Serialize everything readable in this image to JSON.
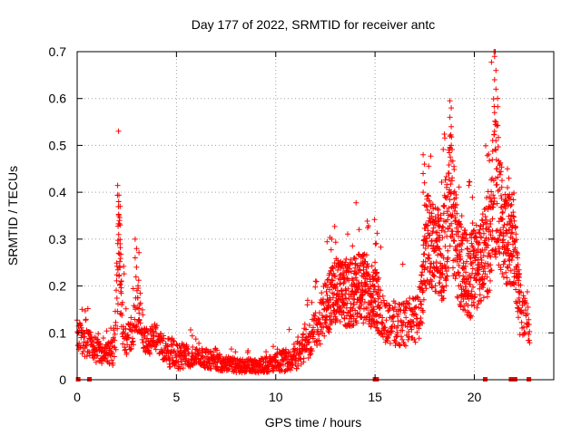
{
  "chart_data": {
    "type": "scatter",
    "title": "Day 177 of 2022, SRMTID for receiver antc",
    "xlabel": "GPS time / hours",
    "ylabel": "SRMTID / TECUs",
    "xlim": [
      0,
      24
    ],
    "ylim": [
      0,
      0.7
    ],
    "x_ticks": [
      {
        "value": 0,
        "label": "0"
      },
      {
        "value": 5,
        "label": "5"
      },
      {
        "value": 10,
        "label": "10"
      },
      {
        "value": 15,
        "label": "15"
      },
      {
        "value": 20,
        "label": "20"
      }
    ],
    "y_ticks": [
      {
        "value": 0,
        "label": "0"
      },
      {
        "value": 0.1,
        "label": "0.1"
      },
      {
        "value": 0.2,
        "label": "0.2"
      },
      {
        "value": 0.3,
        "label": "0.3"
      },
      {
        "value": 0.4,
        "label": "0.4"
      },
      {
        "value": 0.5,
        "label": "0.5"
      },
      {
        "value": 0.6,
        "label": "0.6"
      },
      {
        "value": 0.7,
        "label": "0.7"
      }
    ],
    "grid": true,
    "marker": "+",
    "series_color": "#ff0000",
    "envelope": [
      [
        0.0,
        0.1,
        0.03
      ],
      [
        0.3,
        0.08,
        0.03
      ],
      [
        0.8,
        0.07,
        0.03
      ],
      [
        1.3,
        0.05,
        0.02
      ],
      [
        1.8,
        0.06,
        0.03
      ],
      [
        2.0,
        0.15,
        0.08
      ],
      [
        2.1,
        0.3,
        0.1
      ],
      [
        2.25,
        0.14,
        0.06
      ],
      [
        2.5,
        0.08,
        0.03
      ],
      [
        2.9,
        0.12,
        0.05
      ],
      [
        3.1,
        0.16,
        0.06
      ],
      [
        3.4,
        0.08,
        0.03
      ],
      [
        4.0,
        0.09,
        0.03
      ],
      [
        4.5,
        0.06,
        0.03
      ],
      [
        5.0,
        0.05,
        0.03
      ],
      [
        6.0,
        0.05,
        0.02
      ],
      [
        7.0,
        0.04,
        0.02
      ],
      [
        8.0,
        0.03,
        0.015
      ],
      [
        9.0,
        0.03,
        0.015
      ],
      [
        10.0,
        0.035,
        0.02
      ],
      [
        11.0,
        0.05,
        0.03
      ],
      [
        11.8,
        0.09,
        0.04
      ],
      [
        12.5,
        0.15,
        0.06
      ],
      [
        13.0,
        0.19,
        0.07
      ],
      [
        13.6,
        0.18,
        0.07
      ],
      [
        14.3,
        0.2,
        0.08
      ],
      [
        15.0,
        0.18,
        0.07
      ],
      [
        15.4,
        0.13,
        0.05
      ],
      [
        16.0,
        0.12,
        0.05
      ],
      [
        16.8,
        0.12,
        0.05
      ],
      [
        17.3,
        0.15,
        0.06
      ],
      [
        17.6,
        0.3,
        0.1
      ],
      [
        18.0,
        0.28,
        0.09
      ],
      [
        18.4,
        0.26,
        0.1
      ],
      [
        18.8,
        0.4,
        0.15
      ],
      [
        19.2,
        0.25,
        0.09
      ],
      [
        19.8,
        0.22,
        0.09
      ],
      [
        20.3,
        0.25,
        0.09
      ],
      [
        20.8,
        0.3,
        0.12
      ],
      [
        21.0,
        0.45,
        0.18
      ],
      [
        21.5,
        0.3,
        0.1
      ],
      [
        22.0,
        0.3,
        0.1
      ],
      [
        22.3,
        0.15,
        0.06
      ],
      [
        22.6,
        0.12,
        0.05
      ],
      [
        22.8,
        0.1,
        0.04
      ]
    ],
    "spikes": [
      {
        "x": 2.12,
        "values": [
          0.38,
          0.37,
          0.35,
          0.33,
          0.31,
          0.29,
          0.27
        ]
      },
      {
        "x": 2.95,
        "values": [
          0.3,
          0.28,
          0.26,
          0.24
        ]
      },
      {
        "x": 17.45,
        "values": [
          0.48,
          0.46,
          0.44,
          0.42,
          0.4
        ]
      },
      {
        "x": 18.8,
        "values": [
          0.595,
          0.58,
          0.56,
          0.54,
          0.52,
          0.5
        ]
      },
      {
        "x": 21.05,
        "values": [
          0.69,
          0.66,
          0.64,
          0.62,
          0.57,
          0.55,
          0.53,
          0.51
        ]
      },
      {
        "x": 21.7,
        "values": [
          0.45,
          0.43,
          0.41,
          0.39
        ]
      }
    ],
    "baseline_markers": [
      0.05,
      0.62,
      15.0,
      15.08,
      20.55,
      21.85,
      21.95,
      22.05,
      22.75
    ]
  }
}
